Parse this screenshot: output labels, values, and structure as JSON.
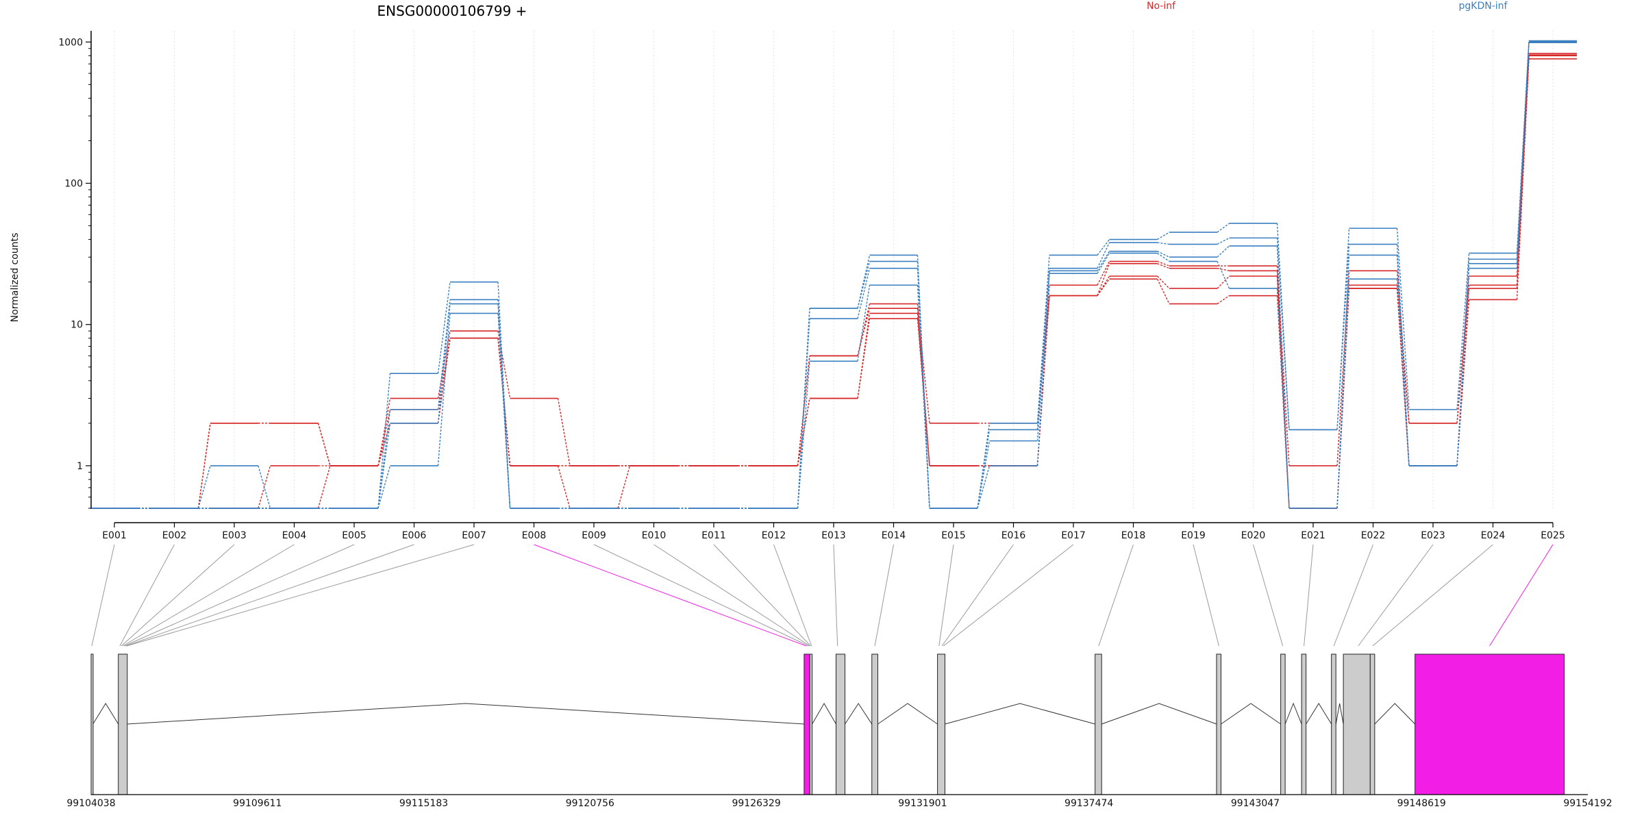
{
  "chart_data": {
    "type": "line",
    "title": "ENSG00000106799 +",
    "xlabel": "",
    "ylabel": "Normalized counts",
    "y_scale": "log",
    "ylim": [
      0.5,
      1200
    ],
    "yticks": [
      1,
      10,
      100,
      1000
    ],
    "ytick_labels": [
      "1",
      "10",
      "100",
      "1000"
    ],
    "grid": "vertical-dotted",
    "legend": "top-right",
    "categories": [
      "E001",
      "E002",
      "E003",
      "E004",
      "E005",
      "E006",
      "E007",
      "E008",
      "E009",
      "E010",
      "E011",
      "E012",
      "E013",
      "E014",
      "E015",
      "E016",
      "E017",
      "E018",
      "E019",
      "E020",
      "E021",
      "E022",
      "E023",
      "E024",
      "E025"
    ],
    "groups": [
      {
        "name": "No-inf",
        "color": "#d62728",
        "samples": [
          [
            0.5,
            0.5,
            2,
            2,
            1,
            3,
            9,
            3,
            1,
            1,
            1,
            1,
            6,
            14,
            1,
            1,
            19,
            28,
            26,
            26,
            1,
            24,
            2,
            22,
            830
          ],
          [
            0.5,
            0.5,
            2,
            2,
            1,
            2,
            8,
            1,
            1,
            1,
            1,
            1,
            6,
            13,
            2,
            2,
            16,
            27,
            25,
            24,
            0.5,
            19,
            2,
            19,
            800
          ],
          [
            0.5,
            0.5,
            0.5,
            1,
            1,
            2,
            8,
            1,
            1,
            1,
            1,
            1,
            3,
            12,
            1,
            1,
            16,
            22,
            18,
            22,
            0.5,
            18,
            1,
            18,
            810
          ],
          [
            0.5,
            0.5,
            0.5,
            0.5,
            1,
            2.5,
            8,
            1,
            0.5,
            1,
            1,
            1,
            3,
            11,
            1,
            1,
            16,
            21,
            14,
            16,
            0.5,
            18,
            1,
            15,
            760
          ]
        ]
      },
      {
        "name": "pgKDN-inf",
        "color": "#3a7fc0",
        "samples": [
          [
            0.5,
            0.5,
            1,
            0.5,
            0.5,
            4.5,
            20,
            0.5,
            0.5,
            0.5,
            0.5,
            0.5,
            13,
            31,
            0.5,
            2,
            31,
            40,
            45,
            52,
            1.8,
            48,
            2.5,
            32,
            1020
          ],
          [
            0.5,
            0.5,
            0.5,
            0.5,
            0.5,
            2.5,
            15,
            0.5,
            0.5,
            0.5,
            0.5,
            0.5,
            13,
            28,
            0.5,
            1.8,
            25,
            38,
            37,
            41,
            1.8,
            37,
            1,
            29,
            1010
          ],
          [
            0.5,
            0.5,
            0.5,
            0.5,
            0.5,
            2,
            14,
            0.5,
            0.5,
            0.5,
            0.5,
            0.5,
            11,
            25,
            0.5,
            1.5,
            24,
            33,
            30,
            36,
            0.5,
            31,
            1,
            27,
            1000
          ],
          [
            0.5,
            0.5,
            0.5,
            0.5,
            0.5,
            1,
            12,
            0.5,
            0.5,
            0.5,
            0.5,
            0.5,
            5.5,
            19,
            0.5,
            1,
            23,
            32,
            28,
            18,
            0.5,
            21,
            1,
            25,
            990
          ]
        ]
      }
    ],
    "gene_model": {
      "start": 99104038,
      "end": 99154192,
      "axis_ticks": [
        99104038,
        99109611,
        99115183,
        99120756,
        99126329,
        99131901,
        99137474,
        99143047,
        99148619,
        99154192
      ],
      "axis_tick_labels": [
        "99104038",
        "99109611",
        "99115183",
        "99120756",
        "99126329",
        "99131901",
        "99137474",
        "99143047",
        "99148619",
        "99154192"
      ],
      "exon_color": "#cccccc",
      "highlight_color": "#f21ee6",
      "exons": [
        {
          "start": 99104038,
          "end": 99104100,
          "highlight": false
        },
        {
          "start": 99104950,
          "end": 99105250,
          "highlight": false
        },
        {
          "start": 99127930,
          "end": 99128120,
          "highlight": true
        },
        {
          "start": 99128120,
          "end": 99128200,
          "highlight": false
        },
        {
          "start": 99129000,
          "end": 99129300,
          "highlight": false
        },
        {
          "start": 99130200,
          "end": 99130400,
          "highlight": false
        },
        {
          "start": 99132400,
          "end": 99132650,
          "highlight": false
        },
        {
          "start": 99137680,
          "end": 99137900,
          "highlight": false
        },
        {
          "start": 99141750,
          "end": 99141900,
          "highlight": false
        },
        {
          "start": 99143900,
          "end": 99144050,
          "highlight": false
        },
        {
          "start": 99144600,
          "end": 99144750,
          "highlight": false
        },
        {
          "start": 99145600,
          "end": 99145750,
          "highlight": false
        },
        {
          "start": 99146000,
          "end": 99146900,
          "highlight": false
        },
        {
          "start": 99146900,
          "end": 99147050,
          "highlight": false
        },
        {
          "start": 99148400,
          "end": 99153400,
          "highlight": true
        }
      ],
      "exon_map": [
        {
          "bin": "E001",
          "pos": 99104060,
          "highlight": false
        },
        {
          "bin": "E002",
          "pos": 99105000,
          "highlight": false
        },
        {
          "bin": "E003",
          "pos": 99105050,
          "highlight": false
        },
        {
          "bin": "E004",
          "pos": 99105100,
          "highlight": false
        },
        {
          "bin": "E005",
          "pos": 99105150,
          "highlight": false
        },
        {
          "bin": "E006",
          "pos": 99105200,
          "highlight": false
        },
        {
          "bin": "E007",
          "pos": 99105230,
          "highlight": false
        },
        {
          "bin": "E008",
          "pos": 99128000,
          "highlight": true
        },
        {
          "bin": "E009",
          "pos": 99128080,
          "highlight": false
        },
        {
          "bin": "E010",
          "pos": 99128120,
          "highlight": false
        },
        {
          "bin": "E011",
          "pos": 99128150,
          "highlight": false
        },
        {
          "bin": "E012",
          "pos": 99128180,
          "highlight": false
        },
        {
          "bin": "E013",
          "pos": 99129050,
          "highlight": false
        },
        {
          "bin": "E014",
          "pos": 99130300,
          "highlight": false
        },
        {
          "bin": "E015",
          "pos": 99132450,
          "highlight": false
        },
        {
          "bin": "E016",
          "pos": 99132550,
          "highlight": false
        },
        {
          "bin": "E017",
          "pos": 99132600,
          "highlight": false
        },
        {
          "bin": "E018",
          "pos": 99137800,
          "highlight": false
        },
        {
          "bin": "E019",
          "pos": 99141830,
          "highlight": false
        },
        {
          "bin": "E020",
          "pos": 99143970,
          "highlight": false
        },
        {
          "bin": "E021",
          "pos": 99144680,
          "highlight": false
        },
        {
          "bin": "E022",
          "pos": 99145680,
          "highlight": false
        },
        {
          "bin": "E023",
          "pos": 99146500,
          "highlight": false
        },
        {
          "bin": "E024",
          "pos": 99146980,
          "highlight": false
        },
        {
          "bin": "E025",
          "pos": 99150900,
          "highlight": true
        }
      ]
    }
  }
}
